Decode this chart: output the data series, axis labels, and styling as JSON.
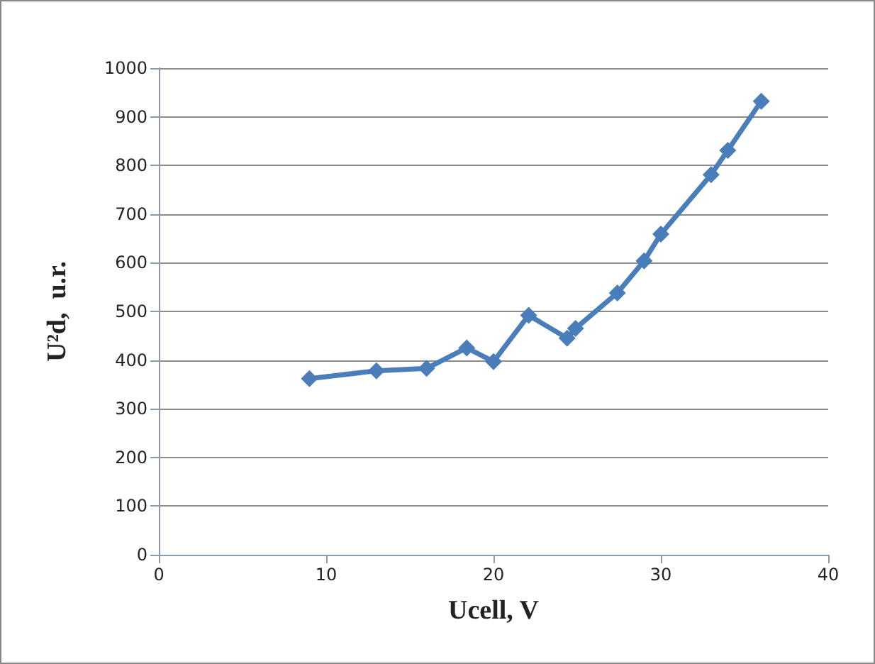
{
  "chart_data": {
    "type": "line",
    "xlabel": "Ucell, V",
    "ylabel": "U²d,  u.r.",
    "x": [
      9,
      13,
      16,
      18.4,
      20,
      22.1,
      24.4,
      24.9,
      27.4,
      29,
      30,
      33,
      34,
      36
    ],
    "series": [
      {
        "color": "#4a7ebb",
        "values": [
          362,
          378,
          383,
          425,
          397,
          492,
          445,
          465,
          538,
          604,
          659,
          781,
          831,
          932
        ]
      }
    ],
    "xlim": [
      0,
      40
    ],
    "xticks": [
      0,
      10,
      20,
      30,
      40
    ],
    "ylim": [
      0,
      1000
    ],
    "yticks": [
      0,
      100,
      200,
      300,
      400,
      500,
      600,
      700,
      800,
      900,
      1000
    ],
    "grid": "y",
    "marker": "diamond",
    "line_style": "solid"
  }
}
